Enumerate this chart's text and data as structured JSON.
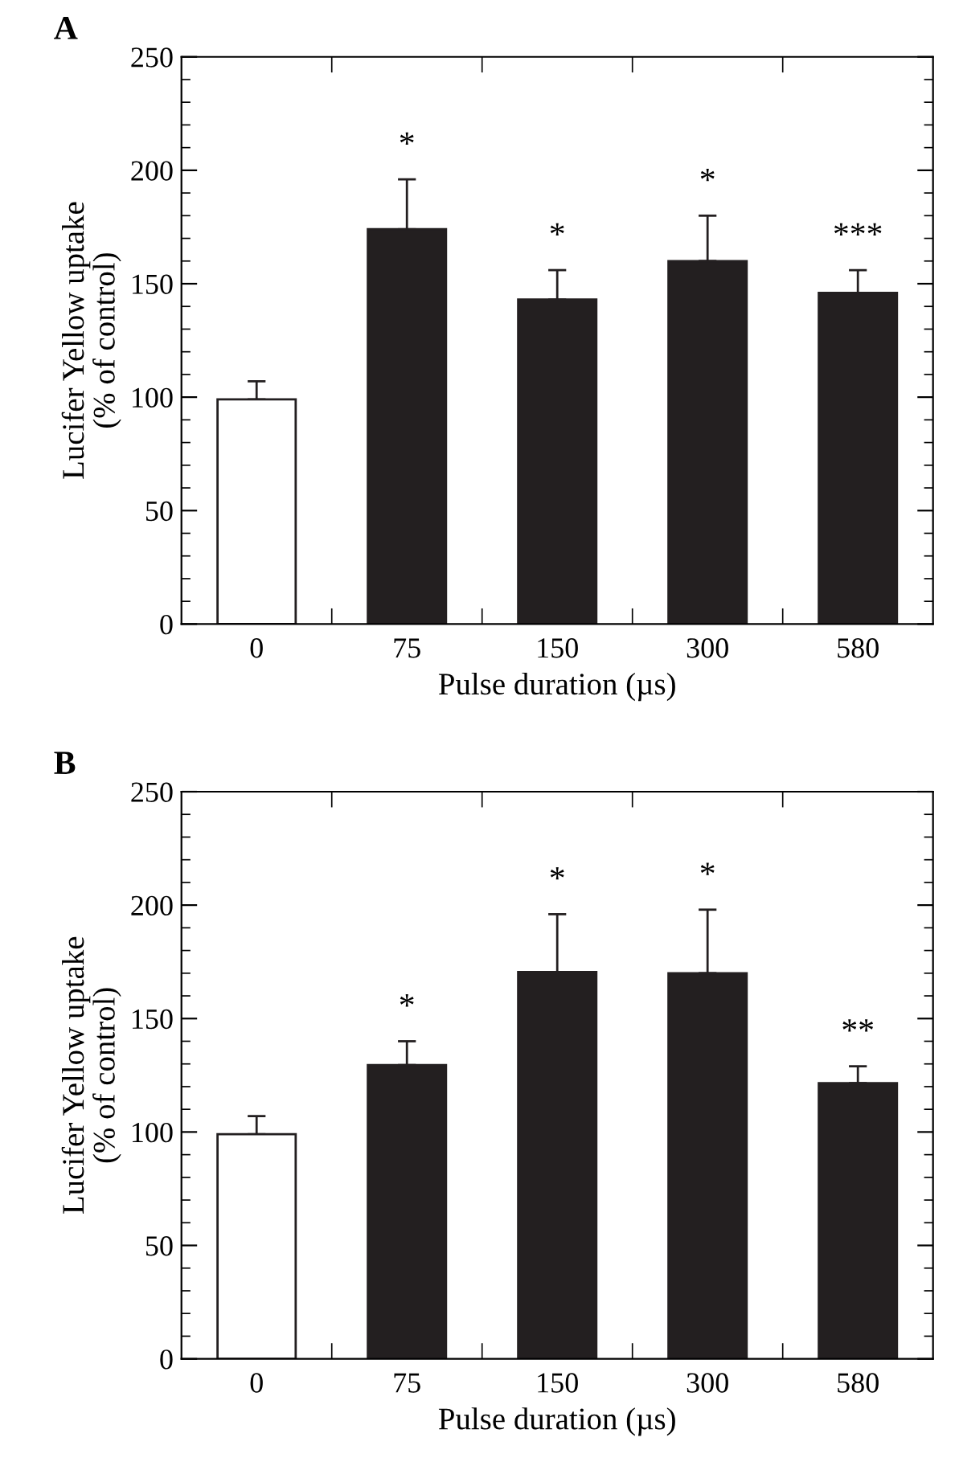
{
  "chart_data": [
    {
      "type": "bar",
      "title": "A",
      "xlabel": "Pulse duration (µs)",
      "ylabel": "Lucifer Yellow uptake\n(% of control)",
      "categories": [
        "0",
        "75",
        "150",
        "300",
        "580"
      ],
      "values": [
        99,
        174,
        143,
        160,
        146
      ],
      "colors": [
        "#ffffff",
        "#231f20",
        "#231f20",
        "#231f20",
        "#231f20"
      ],
      "errors": [
        [
          99,
          107
        ],
        [
          174,
          196
        ],
        [
          143,
          156
        ],
        [
          160,
          180
        ],
        [
          146,
          156
        ]
      ],
      "ylim": [
        0,
        250
      ],
      "yticks": [
        0,
        50,
        100,
        150,
        200,
        250
      ],
      "grid": false,
      "legend": false,
      "value_labels": [
        null,
        "*",
        "*",
        "*",
        "***"
      ]
    },
    {
      "type": "bar",
      "title": "B",
      "xlabel": "Pulse duration (µs)",
      "ylabel": "Lucifer Yellow uptake\n(% of control)",
      "categories": [
        "0",
        "75",
        "150",
        "300",
        "580"
      ],
      "values": [
        99,
        129.5,
        170.5,
        170,
        121.5
      ],
      "colors": [
        "#ffffff",
        "#231f20",
        "#231f20",
        "#231f20",
        "#231f20"
      ],
      "errors": [
        [
          99,
          107
        ],
        [
          129.5,
          140
        ],
        [
          170.5,
          196
        ],
        [
          170,
          198
        ],
        [
          121.5,
          129
        ]
      ],
      "ylim": [
        0,
        250
      ],
      "yticks": [
        0,
        50,
        100,
        150,
        200,
        250
      ],
      "grid": false,
      "legend": false,
      "value_labels": [
        null,
        "*",
        "*",
        "*",
        "**"
      ]
    }
  ]
}
